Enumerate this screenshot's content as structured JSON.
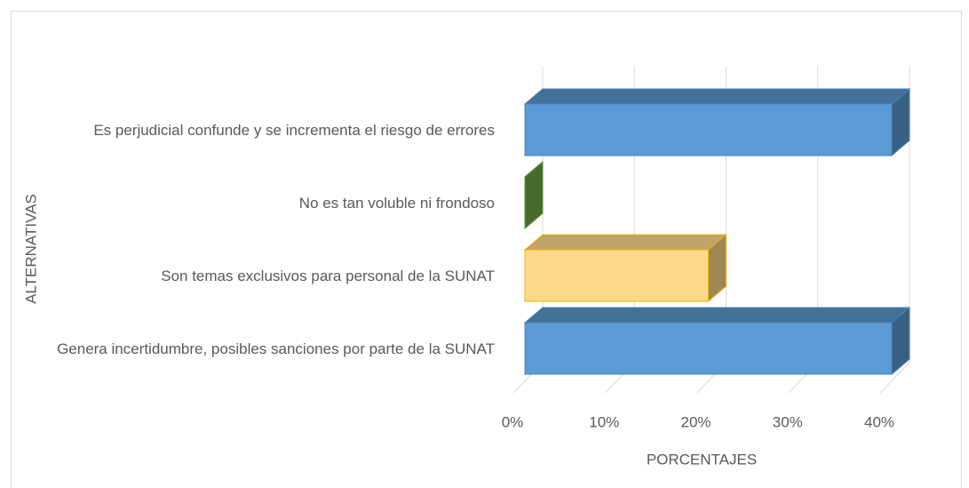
{
  "chart_data": {
    "type": "bar3d",
    "categories": [
      "Es perjudicial confunde y se incrementa el riesgo de errores",
      "No es tan voluble ni frondoso",
      "Son temas exclusivos para personal de la SUNAT",
      "Genera incertidumbre, posibles sanciones por parte de la SUNAT"
    ],
    "values": [
      40,
      0,
      20,
      40
    ],
    "colors": [
      "#5b9bd5",
      "#70ad47",
      "#ffd98a",
      "#5b9bd5"
    ],
    "xlim": [
      0,
      40
    ],
    "xticks": [
      {
        "value": 0,
        "label": "0%"
      },
      {
        "value": 10,
        "label": "10%"
      },
      {
        "value": 20,
        "label": "20%"
      },
      {
        "value": 30,
        "label": "30%"
      },
      {
        "value": 40,
        "label": "40%"
      }
    ],
    "xlabel": "PORCENTAJES",
    "ylabel": "ALTERNATIVAS",
    "grid": true
  }
}
